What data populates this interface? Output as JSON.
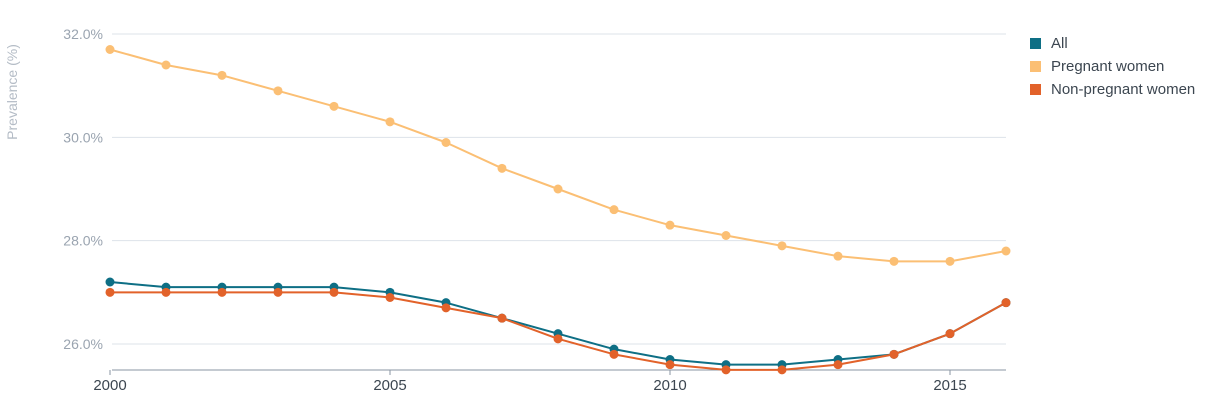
{
  "chart_data": {
    "type": "line",
    "x": [
      2000,
      2001,
      2002,
      2003,
      2004,
      2005,
      2006,
      2007,
      2008,
      2009,
      2010,
      2011,
      2012,
      2013,
      2014,
      2015,
      2016
    ],
    "xlim": [
      2000,
      2016
    ],
    "ylim": [
      25.5,
      32.2
    ],
    "x_ticks": [
      2000,
      2005,
      2010,
      2015
    ],
    "x_tick_labels": [
      "2000",
      "2005",
      "2010",
      "2015"
    ],
    "y_ticks": [
      26,
      28,
      30,
      32
    ],
    "y_tick_labels": [
      "26.0%",
      "28.0%",
      "30.0%",
      "32.0%"
    ],
    "ylabel": "Prevalence (%)",
    "xlabel": "",
    "title": "",
    "grid": "horizontal",
    "legend_position": "top-right",
    "series": [
      {
        "name": "All",
        "color": "#0e6f85",
        "values": [
          27.2,
          27.1,
          27.1,
          27.1,
          27.1,
          27.0,
          26.8,
          26.5,
          26.2,
          25.9,
          25.7,
          25.6,
          25.6,
          25.7,
          25.8,
          26.2,
          26.8
        ]
      },
      {
        "name": "Pregnant women",
        "color": "#fbbf74",
        "values": [
          31.7,
          31.4,
          31.2,
          30.9,
          30.6,
          30.3,
          29.9,
          29.4,
          29.0,
          28.6,
          28.3,
          28.1,
          27.9,
          27.7,
          27.6,
          27.6,
          27.8
        ]
      },
      {
        "name": "Non-pregnant women",
        "color": "#e2622a",
        "values": [
          27.0,
          27.0,
          27.0,
          27.0,
          27.0,
          26.9,
          26.7,
          26.5,
          26.1,
          25.8,
          25.6,
          25.5,
          25.5,
          25.6,
          25.8,
          26.2,
          26.8
        ]
      }
    ]
  }
}
